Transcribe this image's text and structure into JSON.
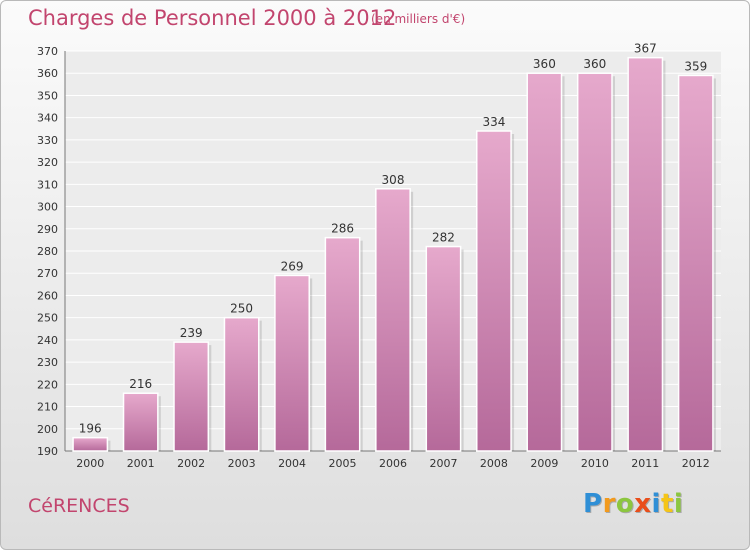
{
  "chart_data": {
    "type": "bar",
    "title": "Charges de Personnel 2000 à 2012",
    "subtitle": "(en milliers d'€)",
    "categories": [
      "2000",
      "2001",
      "2002",
      "2003",
      "2004",
      "2005",
      "2006",
      "2007",
      "2008",
      "2009",
      "2010",
      "2011",
      "2012"
    ],
    "values": [
      196,
      216,
      239,
      250,
      269,
      286,
      308,
      282,
      334,
      360,
      360,
      367,
      359
    ],
    "ylim": [
      190,
      370
    ],
    "yticks": [
      190,
      200,
      210,
      220,
      230,
      240,
      250,
      260,
      270,
      280,
      290,
      300,
      310,
      320,
      330,
      340,
      350,
      360,
      370
    ],
    "grid": true,
    "bar_color": "#b5699a",
    "legend": "none"
  },
  "footer": {
    "commune": "CéRENCES",
    "brand_letters": [
      {
        "ch": "P",
        "color": "#2f8fd6"
      },
      {
        "ch": "r",
        "color": "#f29a1d"
      },
      {
        "ch": "o",
        "color": "#8cc63f"
      },
      {
        "ch": "x",
        "color": "#e94e1b"
      },
      {
        "ch": "i",
        "color": "#2f8fd6"
      },
      {
        "ch": "t",
        "color": "#f5c518"
      },
      {
        "ch": "i",
        "color": "#8cc63f"
      }
    ]
  }
}
